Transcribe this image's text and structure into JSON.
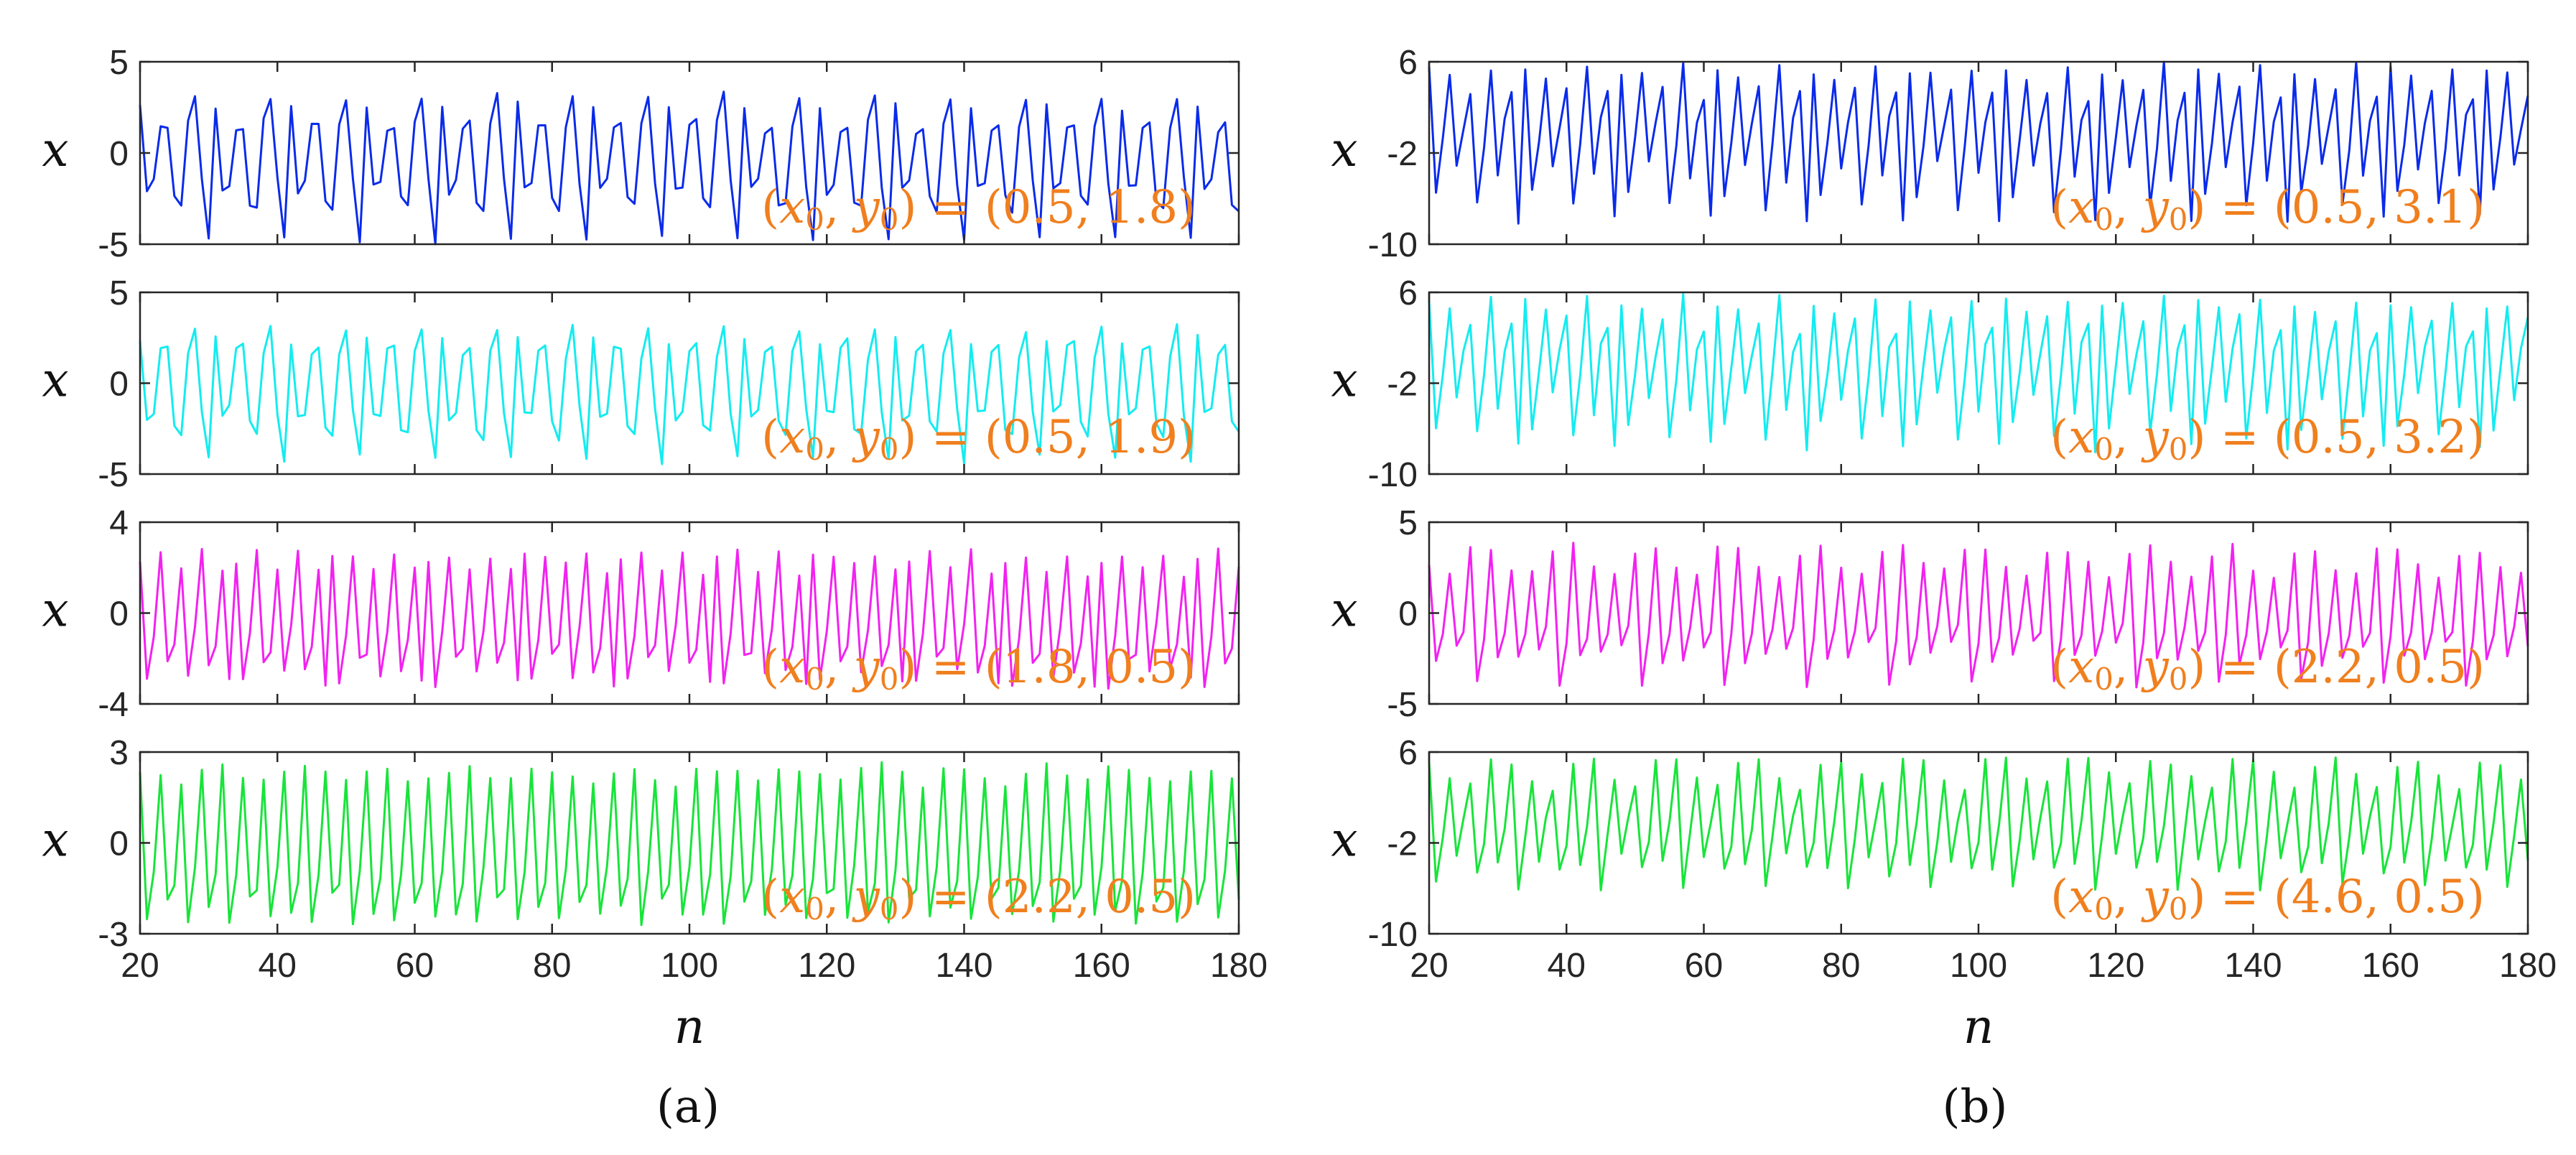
{
  "figure": {
    "caption_a": "(a)",
    "caption_b": "(b)"
  },
  "colors": {
    "blue": "#0a2bea",
    "cyan": "#14ecf0",
    "magenta": "#f222f0",
    "green": "#18e43a",
    "annotation": "#f07f1e"
  },
  "chart_data": [
    {
      "id": "a1",
      "type": "line",
      "column": "a",
      "ylabel": "x",
      "xlabel": "",
      "xlim": [
        20,
        180
      ],
      "ylim": [
        -5,
        5
      ],
      "yticks": [
        -5,
        0,
        5
      ],
      "xticks": [],
      "legend": {
        "open": "(",
        "v1": "x",
        "s1": "0",
        "sep": ", ",
        "v2": "y",
        "s2": "0",
        "close": ")",
        "eq": " = ",
        "value": "(0.5, 1.8)"
      },
      "color": "#0a2bea",
      "pattern": [
        2.6,
        -2.0,
        -1.7,
        1.3,
        1.6,
        -2.6,
        -3.0,
        1.6,
        3.1,
        -1.6,
        -4.8
      ],
      "seed": 1
    },
    {
      "id": "a2",
      "type": "line",
      "column": "a",
      "ylabel": "x",
      "xlabel": "",
      "xlim": [
        20,
        180
      ],
      "ylim": [
        -5,
        5
      ],
      "yticks": [
        -5,
        0,
        5
      ],
      "xticks": [],
      "legend": {
        "open": "(",
        "v1": "x",
        "s1": "0",
        "sep": ", ",
        "v2": "y",
        "s2": "0",
        "close": ")",
        "eq": " = ",
        "value": "(0.5, 1.9)"
      },
      "color": "#14ecf0",
      "pattern": [
        2.4,
        -1.8,
        -1.5,
        1.8,
        2.2,
        -2.3,
        -2.9,
        1.6,
        3.0,
        -1.5,
        -4.2
      ],
      "seed": 2
    },
    {
      "id": "a3",
      "type": "line",
      "column": "a",
      "ylabel": "x",
      "xlabel": "",
      "xlim": [
        20,
        180
      ],
      "ylim": [
        -4,
        4
      ],
      "yticks": [
        -4,
        0,
        4
      ],
      "xticks": [],
      "legend": {
        "open": "(",
        "v1": "x",
        "s1": "0",
        "sep": ", ",
        "v2": "y",
        "s2": "0",
        "close": ")",
        "eq": " = ",
        "value": "(1.8, 0.5)"
      },
      "color": "#f222f0",
      "pattern": [
        2.4,
        -3.1,
        -1.0,
        2.6,
        -2.0,
        -1.6,
        2.0,
        -2.7,
        -0.6,
        2.6,
        -2.4,
        -1.4,
        1.8,
        -3.0
      ],
      "seed": 3
    },
    {
      "id": "a4",
      "type": "line",
      "column": "a",
      "ylabel": "x",
      "xlabel": "n",
      "xlim": [
        20,
        180
      ],
      "ylim": [
        -3,
        3
      ],
      "yticks": [
        -3,
        0,
        3
      ],
      "xticks": [
        20,
        40,
        60,
        80,
        100,
        120,
        140,
        160,
        180
      ],
      "legend": {
        "open": "(",
        "v1": "x",
        "s1": "0",
        "sep": ", ",
        "v2": "y",
        "s2": "0",
        "close": ")",
        "eq": " = ",
        "value": "(2.2, 0.5)"
      },
      "color": "#18e43a",
      "pattern": [
        2.5,
        -2.6,
        -1.0,
        2.2,
        -1.8,
        -1.4,
        2.0,
        -2.5,
        -0.8,
        2.4,
        -2.2,
        -1.2
      ],
      "seed": 4
    },
    {
      "id": "b1",
      "type": "line",
      "column": "b",
      "ylabel": "x",
      "xlabel": "",
      "xlim": [
        20,
        180
      ],
      "ylim": [
        -10,
        6
      ],
      "yticks": [
        -10,
        -2,
        6
      ],
      "xticks": [],
      "legend": {
        "open": "(",
        "v1": "x",
        "s1": "0",
        "sep": ", ",
        "v2": "y",
        "s2": "0",
        "close": ")",
        "eq": " = ",
        "value": "(0.5, 3.1)"
      },
      "color": "#0a2bea",
      "pattern": [
        5.2,
        -5.5,
        -1.0,
        4.8,
        -3.0,
        0.5,
        3.5,
        -6.8,
        -1.5,
        5.6,
        -4.2,
        1.0,
        3.0,
        -7.8
      ],
      "seed": 5
    },
    {
      "id": "b2",
      "type": "line",
      "column": "b",
      "ylabel": "x",
      "xlabel": "",
      "xlim": [
        20,
        180
      ],
      "ylim": [
        -10,
        6
      ],
      "yticks": [
        -10,
        -2,
        6
      ],
      "xticks": [],
      "legend": {
        "open": "(",
        "v1": "x",
        "s1": "0",
        "sep": ", ",
        "v2": "y",
        "s2": "0",
        "close": ")",
        "eq": " = ",
        "value": "(0.5, 3.2)"
      },
      "color": "#14ecf0",
      "pattern": [
        5.0,
        -5.8,
        -0.8,
        4.6,
        -3.2,
        0.8,
        3.6,
        -6.5,
        -1.2,
        5.4,
        -4.5,
        1.2,
        2.8,
        -7.6
      ],
      "seed": 6
    },
    {
      "id": "b3",
      "type": "line",
      "column": "b",
      "ylabel": "x",
      "xlabel": "",
      "xlim": [
        20,
        180
      ],
      "ylim": [
        -5,
        5
      ],
      "yticks": [
        -5,
        0,
        5
      ],
      "xticks": [],
      "legend": {
        "open": "(",
        "v1": "x",
        "s1": "0",
        "sep": ", ",
        "v2": "y",
        "s2": "0",
        "close": ")",
        "eq": " = ",
        "value": "(2.2, 0.5)"
      },
      "color": "#f222f0",
      "pattern": [
        2.6,
        -2.4,
        -1.0,
        2.2,
        -1.8,
        -0.8,
        3.4,
        -3.8,
        -1.4,
        3.6,
        -2.6,
        -1.2
      ],
      "seed": 7
    },
    {
      "id": "b4",
      "type": "line",
      "column": "b",
      "ylabel": "x",
      "xlabel": "n",
      "xlim": [
        20,
        180
      ],
      "ylim": [
        -10,
        6
      ],
      "yticks": [
        -10,
        -2,
        6
      ],
      "xticks": [
        20,
        40,
        60,
        80,
        100,
        120,
        140,
        160,
        180
      ],
      "legend": {
        "open": "(",
        "v1": "x",
        "s1": "0",
        "sep": ", ",
        "v2": "y",
        "s2": "0",
        "close": ")",
        "eq": " = ",
        "value": "(4.6, 0.5)"
      },
      "color": "#18e43a",
      "pattern": [
        5.2,
        -5.8,
        -1.5,
        3.8,
        -3.2,
        0.0,
        3.0,
        -4.5,
        -2.0,
        5.0,
        -4.0,
        -0.5
      ],
      "seed": 8
    }
  ]
}
